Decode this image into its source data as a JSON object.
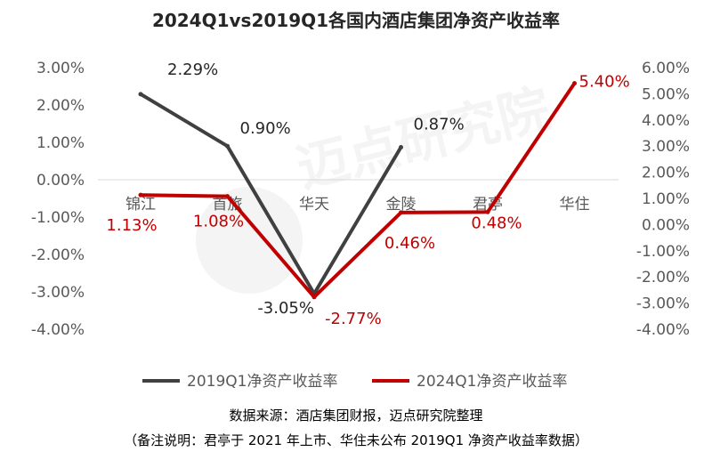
{
  "chart_data": {
    "type": "line",
    "title": "2024Q1vs2019Q1各国内酒店集团净资产收益率",
    "categories": [
      "锦江",
      "首旅",
      "华天",
      "金陵",
      "君亭",
      "华住"
    ],
    "y_left": {
      "ticks": [
        "3.00%",
        "2.00%",
        "1.00%",
        "0.00%",
        "-1.00%",
        "-2.00%",
        "-3.00%",
        "-4.00%"
      ],
      "ylim": [
        -4,
        3
      ]
    },
    "y_right": {
      "ticks": [
        "6.00%",
        "5.00%",
        "4.00%",
        "3.00%",
        "2.00%",
        "1.00%",
        "0.00%",
        "-1.00%",
        "-2.00%",
        "-3.00%",
        "-4.00%"
      ],
      "ylim": [
        -4,
        6
      ]
    },
    "series": [
      {
        "name": "2019Q1净资产收益率",
        "axis": "left",
        "color": "#404040",
        "values": [
          2.29,
          0.9,
          -3.05,
          0.87,
          null,
          null
        ],
        "labels": [
          "2.29%",
          "0.90%",
          "-3.05%",
          "0.87%",
          "",
          ""
        ]
      },
      {
        "name": "2024Q1净资产收益率",
        "axis": "right",
        "color": "#c00000",
        "values": [
          1.13,
          1.08,
          -2.77,
          0.46,
          0.48,
          5.4
        ],
        "labels": [
          "1.13%",
          "1.08%",
          "-2.77%",
          "0.46%",
          "0.48%",
          "5.40%"
        ]
      }
    ],
    "legend_position": "bottom",
    "grid": false,
    "watermark": "迈点研究院"
  },
  "footnotes": {
    "source": "数据来源：酒店集团财报，迈点研究院整理",
    "note": "（备注说明：君亭于 2021 年上市、华住未公布 2019Q1 净资产收益率数据）"
  }
}
